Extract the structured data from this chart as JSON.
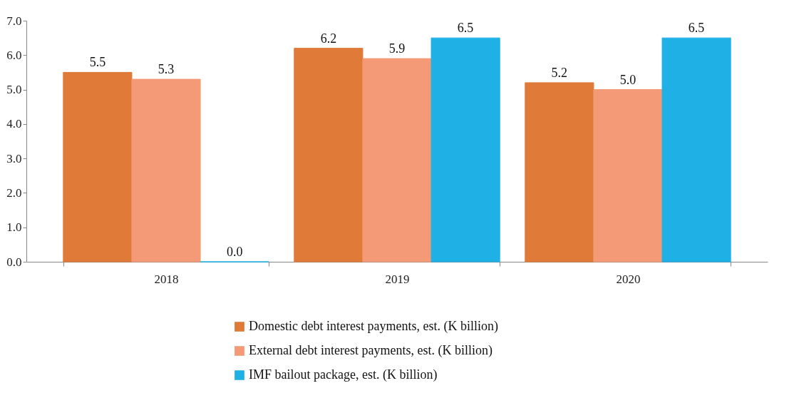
{
  "chart_data": {
    "type": "bar",
    "categories": [
      "2018",
      "2019",
      "2020"
    ],
    "series": [
      {
        "name": "Domestic debt interest payments, est. (K billion)",
        "color": "#df7a39",
        "values": [
          5.5,
          6.2,
          5.2
        ],
        "value_labels": [
          "5.5",
          "6.2",
          "5.2"
        ]
      },
      {
        "name": "External debt interest payments, est. (K billion)",
        "color": "#f49a77",
        "values": [
          5.3,
          5.9,
          5.0
        ],
        "value_labels": [
          "5.3",
          "5.9",
          "5.0"
        ]
      },
      {
        "name": "IMF bailout package, est. (K billion)",
        "color": "#1fb0e6",
        "values": [
          0,
          6.5,
          6.5
        ],
        "value_labels": [
          "0.0",
          "6.5",
          "6.5"
        ]
      }
    ],
    "ylim": [
      0,
      7
    ],
    "yticks": [
      {
        "value": 0,
        "label": "0.0"
      },
      {
        "value": 1,
        "label": "1.0"
      },
      {
        "value": 2,
        "label": "2.0"
      },
      {
        "value": 3,
        "label": "3.0"
      },
      {
        "value": 4,
        "label": "4.0"
      },
      {
        "value": 5,
        "label": "5.0"
      },
      {
        "value": 6,
        "label": "6.0"
      },
      {
        "value": 7,
        "label": "7.0"
      }
    ],
    "grid": false,
    "legend": "bottom"
  }
}
